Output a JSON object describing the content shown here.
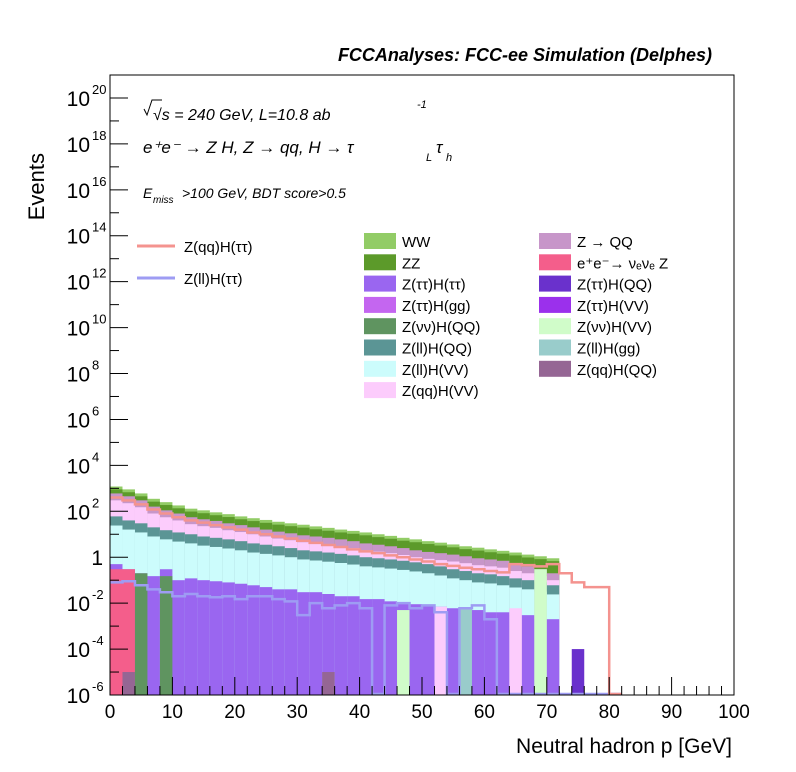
{
  "chart_data": {
    "type": "area",
    "title": "FCCAnalyses: FCC-ee Simulation (Delphes)",
    "xlabel": "Neutral hadron p [GeV]",
    "ylabel": "Events",
    "xlim": [
      0,
      100
    ],
    "ylim": [
      1e-06,
      1e+21
    ],
    "yscale": "log",
    "grid": false,
    "x_ticks": [
      "0",
      "10",
      "20",
      "30",
      "40",
      "50",
      "60",
      "70",
      "80",
      "90",
      "100"
    ],
    "y_ticks": [
      {
        "base": "10",
        "exp": "-6",
        "value": 1e-06
      },
      {
        "base": "10",
        "exp": "-4",
        "value": 0.0001
      },
      {
        "base": "10",
        "exp": "-2",
        "value": 0.01
      },
      {
        "base": "1",
        "exp": "",
        "value": 1
      },
      {
        "base": "10",
        "exp": "2",
        "value": 100.0
      },
      {
        "base": "10",
        "exp": "4",
        "value": 10000.0
      },
      {
        "base": "10",
        "exp": "6",
        "value": 1000000.0
      },
      {
        "base": "10",
        "exp": "8",
        "value": 100000000.0
      },
      {
        "base": "10",
        "exp": "10",
        "value": 10000000000.0
      },
      {
        "base": "10",
        "exp": "12",
        "value": 1000000000000.0
      },
      {
        "base": "10",
        "exp": "14",
        "value": 100000000000000.0
      },
      {
        "base": "10",
        "exp": "16",
        "value": 1e+16
      },
      {
        "base": "10",
        "exp": "18",
        "value": 1e+18
      },
      {
        "base": "10",
        "exp": "20",
        "value": 1e+20
      }
    ],
    "annotations": {
      "energy": "√s = 240 GeV, L=10.8 ab",
      "energy_exp": "-1",
      "process": "e⁺e⁻ → Z H, Z → qq, H → τ",
      "process_sub1": "L",
      "process_tau2": "τ",
      "process_sub2": "h",
      "cut_pre": "E",
      "cut_sub": "miss",
      "cut_post": ">100 GeV, BDT score>0.5"
    },
    "legend_signal": [
      {
        "name": "Z(qq)H(ττ)",
        "color": "#f4938f"
      },
      {
        "name": "Z(ll)H(ττ)",
        "color": "#9e9cf3"
      }
    ],
    "legend_background": [
      {
        "name": "WW",
        "color": "#92cc66"
      },
      {
        "name": "Z → QQ",
        "color": "#c796c9"
      },
      {
        "name": "ZZ",
        "color": "#5c9a2a"
      },
      {
        "name": "e⁺e⁻→ νₑνₑ Z",
        "color": "#f45e8b"
      },
      {
        "name": "Z(ττ)H(ττ)",
        "color": "#9a66f0"
      },
      {
        "name": "Z(ττ)H(QQ)",
        "color": "#6a31cc"
      },
      {
        "name": "Z(ττ)H(gg)",
        "color": "#c466f0"
      },
      {
        "name": "Z(ττ)H(VV)",
        "color": "#9b30ec"
      },
      {
        "name": "Z(νν)H(QQ)",
        "color": "#5f9460"
      },
      {
        "name": "Z(νν)H(VV)",
        "color": "#d0fcc9"
      },
      {
        "name": "Z(ll)H(QQ)",
        "color": "#5b9595"
      },
      {
        "name": "Z(ll)H(gg)",
        "color": "#99cccb"
      },
      {
        "name": "Z(ll)H(VV)",
        "color": "#ccfcfc"
      },
      {
        "name": "Z(qq)H(QQ)",
        "color": "#956694"
      },
      {
        "name": "Z(qq)H(VV)",
        "color": "#fcccfc"
      }
    ],
    "bin_width": 2,
    "stack_bins": [
      0,
      2,
      4,
      6,
      8,
      10,
      12,
      14,
      16,
      18,
      20,
      22,
      24,
      26,
      28,
      30,
      32,
      34,
      36,
      38,
      40,
      42,
      44,
      46,
      48,
      50,
      52,
      54,
      56,
      58,
      60,
      62,
      64,
      66,
      68,
      70,
      72,
      74,
      76,
      78
    ],
    "stack_total": [
      1200,
      900,
      600,
      350,
      250,
      180,
      130,
      110,
      90,
      75,
      60,
      50,
      42,
      35,
      30,
      26,
      22,
      19,
      16,
      14,
      12,
      10,
      8.5,
      7,
      6,
      5,
      4.3,
      3.6,
      3,
      2.6,
      2.2,
      1.9,
      1.6,
      1.3,
      1.1,
      0.9,
      1e-06,
      1e-06,
      1e-06,
      1e-06
    ],
    "stack_mid": [
      600,
      450,
      300,
      160,
      110,
      80,
      55,
      45,
      38,
      30,
      25,
      20,
      16,
      13,
      11,
      9,
      8,
      7,
      6,
      5,
      4,
      3.5,
      3,
      2.5,
      2,
      1.7,
      1.5,
      1.3,
      1.1,
      0.9,
      0.8,
      0.7,
      0.5,
      0.4,
      0.3,
      0.2,
      1e-06,
      1e-06,
      1e-06,
      1e-06
    ],
    "stack_lower": [
      60,
      40,
      30,
      20,
      15,
      12,
      10,
      8,
      7,
      6,
      5,
      4,
      3.5,
      3,
      2.5,
      2,
      1.8,
      1.6,
      1.4,
      1.2,
      1,
      0.9,
      0.8,
      0.7,
      0.6,
      0.5,
      0.4,
      0.3,
      0.25,
      0.2,
      0.18,
      0.15,
      0.12,
      0.1,
      0.08,
      0.06,
      1e-06,
      1e-06,
      1e-06,
      1e-06
    ],
    "stack_base": [
      0.5,
      0.3,
      0.2,
      0.15,
      0.3,
      0.1,
      0.12,
      0.1,
      0.09,
      0.08,
      0.07,
      0.06,
      0.05,
      0.04,
      0.04,
      0.03,
      0.03,
      0.025,
      0.02,
      0.02,
      0.015,
      0.015,
      0.012,
      0.01,
      0.009,
      0.008,
      0.007,
      0.006,
      0.006,
      0.005,
      0.004,
      0.004,
      0.003,
      0.003,
      0.002,
      0.002,
      1e-06,
      1e-06,
      1e-06,
      1e-06
    ],
    "zz_extra_x": [
      72,
      74,
      76
    ],
    "zz_extra_val": [
      1e-06,
      1e-06,
      1e-06
    ],
    "signal_qq_x": [
      0,
      2,
      4,
      6,
      8,
      10,
      12,
      14,
      16,
      18,
      20,
      22,
      24,
      26,
      28,
      30,
      32,
      34,
      36,
      38,
      40,
      42,
      44,
      46,
      48,
      50,
      52,
      54,
      56,
      58,
      60,
      62,
      64,
      66,
      68,
      70,
      72,
      74,
      76,
      78,
      80
    ],
    "signal_qq_y": [
      400,
      300,
      200,
      120,
      80,
      55,
      40,
      32,
      25,
      20,
      16,
      12,
      10,
      8,
      6.5,
      5.2,
      4.2,
      3.4,
      2.8,
      2.2,
      1.8,
      1.5,
      1.2,
      1,
      0.8,
      0.65,
      0.5,
      0.42,
      0.35,
      0.3,
      0.25,
      0.22,
      0.5,
      0.45,
      0.4,
      0.5,
      0.2,
      0.08,
      0.05,
      0.05,
      1e-06
    ],
    "signal_ll_x": [
      0,
      2,
      4,
      6,
      8,
      10,
      12,
      14,
      16,
      18,
      20,
      22,
      24,
      26,
      28,
      30,
      32,
      34,
      36,
      38,
      40,
      42,
      44,
      46,
      48,
      50,
      52,
      54,
      56,
      58,
      60,
      62,
      64,
      66,
      68,
      70,
      72,
      74,
      76,
      78,
      80
    ],
    "signal_ll_y": [
      0.08,
      0.09,
      0.06,
      0.04,
      0.03,
      0.02,
      0.025,
      0.02,
      0.018,
      0.02,
      0.015,
      0.02,
      0.02,
      0.015,
      0.012,
      0.003,
      0.01,
      0.006,
      0.008,
      0.01,
      0.006,
      1e-06,
      0.008,
      0.01,
      0.006,
      0.008,
      0.004,
      1e-06,
      0.006,
      0.008,
      0.002,
      1e-06,
      1e-06,
      1e-06,
      1e-06,
      1e-06,
      1e-06,
      1e-06,
      1e-06,
      1e-06,
      1e-06
    ],
    "special_bars": [
      {
        "x": 0,
        "width": 4,
        "value": 0.3,
        "color": "#f45e8b"
      },
      {
        "x": 2,
        "width": 2,
        "value": 1e-05,
        "color": "#956694"
      },
      {
        "x": 4,
        "width": 2,
        "value": 0.2,
        "color": "#5f9460"
      },
      {
        "x": 8,
        "width": 2,
        "value": 0.15,
        "color": "#5f9460"
      },
      {
        "x": 34,
        "width": 2,
        "value": 1e-05,
        "color": "#956694"
      },
      {
        "x": 46,
        "width": 2,
        "value": 0.005,
        "color": "#d0fcc9"
      },
      {
        "x": 52,
        "width": 2,
        "value": 0.007,
        "color": "#fcccfc"
      },
      {
        "x": 56,
        "width": 2,
        "value": 0.006,
        "color": "#99cccb"
      },
      {
        "x": 64,
        "width": 2,
        "value": 0.006,
        "color": "#fcccfc"
      },
      {
        "x": 68,
        "width": 2,
        "value": 0.3,
        "color": "#d0fcc9"
      },
      {
        "x": 74,
        "width": 2,
        "value": 0.0001,
        "color": "#6a31cc"
      }
    ]
  }
}
